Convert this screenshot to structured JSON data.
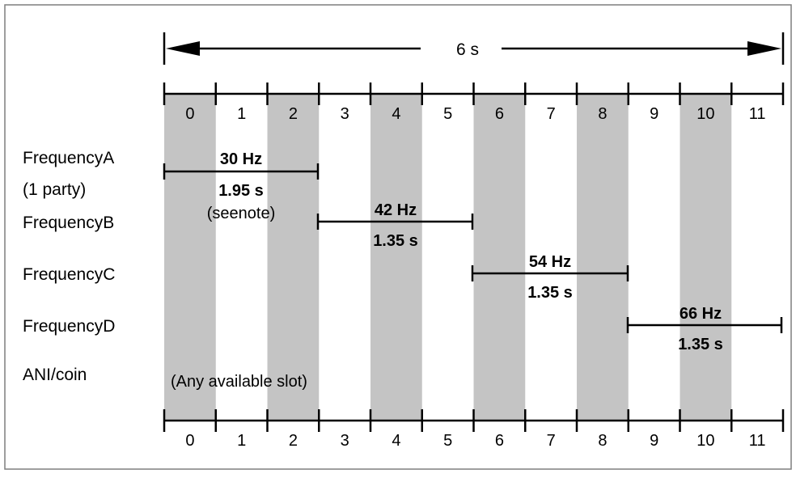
{
  "duration_label": "6 s",
  "slots": [
    "0",
    "1",
    "2",
    "3",
    "4",
    "5",
    "6",
    "7",
    "8",
    "9",
    "10",
    "11"
  ],
  "shaded_slots": [
    0,
    2,
    4,
    6,
    8,
    10
  ],
  "rows": [
    {
      "label": "FrequencyA",
      "sublabel": "(1 party)"
    },
    {
      "label": "FrequencyB"
    },
    {
      "label": "FrequencyC"
    },
    {
      "label": "FrequencyD"
    },
    {
      "label": "ANI/coin"
    }
  ],
  "segments": [
    {
      "start_slot": 0,
      "end_slot": 3,
      "freq": "30 Hz",
      "duration": "1.95 s",
      "note": "(seenote)"
    },
    {
      "start_slot": 3,
      "end_slot": 6,
      "freq": "42 Hz",
      "duration": "1.35 s"
    },
    {
      "start_slot": 6,
      "end_slot": 9,
      "freq": "54 Hz",
      "duration": "1.35 s"
    },
    {
      "start_slot": 9,
      "end_slot": 12,
      "freq": "66 Hz",
      "duration": "1.35 s"
    }
  ],
  "ani_note": "(Any available slot)",
  "colors": {
    "shade": "#c4c4c4",
    "line": "#000000",
    "border": "#7f7f7f"
  }
}
